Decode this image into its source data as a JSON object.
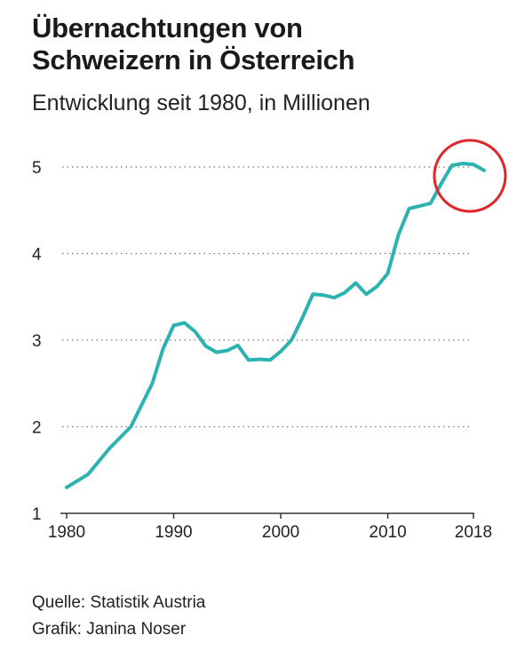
{
  "title_line1": "Übernachtungen von",
  "title_line2": "Schweizern in Österreich",
  "subtitle": "Entwicklung seit 1980, in Millionen",
  "source": "Quelle: Statistik Austria",
  "credit": "Grafik: Janina Noser",
  "colors": {
    "line": "#2cb3b0",
    "highlight": "#e0262a",
    "grid": "#777777",
    "axis": "#333333"
  },
  "chart_data": {
    "type": "line",
    "title": "Übernachtungen von Schweizern in Österreich",
    "subtitle": "Entwicklung seit 1980, in Millionen",
    "xlabel": "",
    "ylabel": "",
    "xlim": [
      1980,
      2019
    ],
    "ylim": [
      1,
      5
    ],
    "x_ticks": [
      1980,
      1990,
      2000,
      2010,
      2018
    ],
    "x_tick_labels": [
      "1980",
      "1990",
      "2000",
      "2010",
      "2018"
    ],
    "y_ticks": [
      1,
      2,
      3,
      4,
      5
    ],
    "y_tick_labels": [
      "1",
      "2",
      "3",
      "4",
      "5"
    ],
    "grid": "horizontal-dotted",
    "highlight": {
      "x": 2018,
      "y": 5.0,
      "shape": "circle"
    },
    "series": [
      {
        "x": [
          1980,
          1982,
          1984,
          1986,
          1988,
          1989,
          1990,
          1991,
          1992,
          1993,
          1994,
          1995,
          1996,
          1997,
          1998,
          1999,
          2000,
          2001,
          2002,
          2003,
          2004,
          2005,
          2006,
          2007,
          2008,
          2009,
          2010,
          2011,
          2012,
          2013,
          2014,
          2015,
          2016,
          2017,
          2018,
          2019
        ],
        "y": [
          1.3,
          1.45,
          1.75,
          2.0,
          2.5,
          2.9,
          3.17,
          3.2,
          3.1,
          2.93,
          2.86,
          2.88,
          2.94,
          2.77,
          2.78,
          2.77,
          2.87,
          3.0,
          3.25,
          3.53,
          3.52,
          3.49,
          3.55,
          3.66,
          3.53,
          3.62,
          3.77,
          4.22,
          4.52,
          4.55,
          4.58,
          4.81,
          5.02,
          5.04,
          5.03,
          4.96
        ]
      }
    ]
  }
}
